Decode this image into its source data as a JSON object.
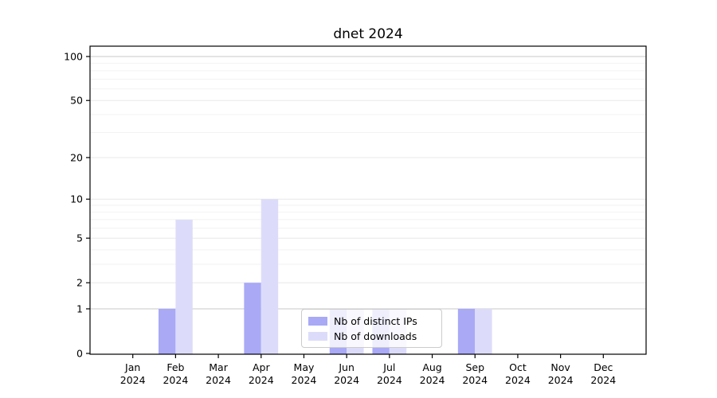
{
  "chart_data": {
    "type": "bar",
    "title": "dnet 2024",
    "categories": [
      "Jan",
      "Feb",
      "Mar",
      "Apr",
      "May",
      "Jun",
      "Jul",
      "Aug",
      "Sep",
      "Oct",
      "Nov",
      "Dec"
    ],
    "category_year": "2024",
    "series": [
      {
        "name": "Nb of distinct IPs",
        "color": "#a9a9f6",
        "values": [
          0,
          1,
          0,
          2,
          0,
          1,
          1,
          0,
          1,
          0,
          0,
          0
        ]
      },
      {
        "name": "Nb of downloads",
        "color": "#dcdcfa",
        "values": [
          0,
          7,
          0,
          10,
          0,
          1,
          1,
          0,
          1,
          0,
          0,
          0
        ]
      }
    ],
    "yscale": "log1p",
    "yticks": [
      0,
      1,
      2,
      5,
      10,
      20,
      50,
      100
    ],
    "yticks_minor": [
      3,
      4,
      6,
      7,
      8,
      9,
      30,
      40,
      60,
      70,
      80,
      90
    ],
    "strong_gridlines": [
      1,
      100
    ],
    "ylim": [
      0,
      118
    ],
    "grid": true,
    "grid_colors": {
      "minor": "#f2f2f2",
      "major": "#e8e8e8",
      "strong": "#c9c9c9"
    },
    "background": "#ffffff",
    "spine_color": "#000000",
    "legend_position": "inside-bottom-center"
  }
}
